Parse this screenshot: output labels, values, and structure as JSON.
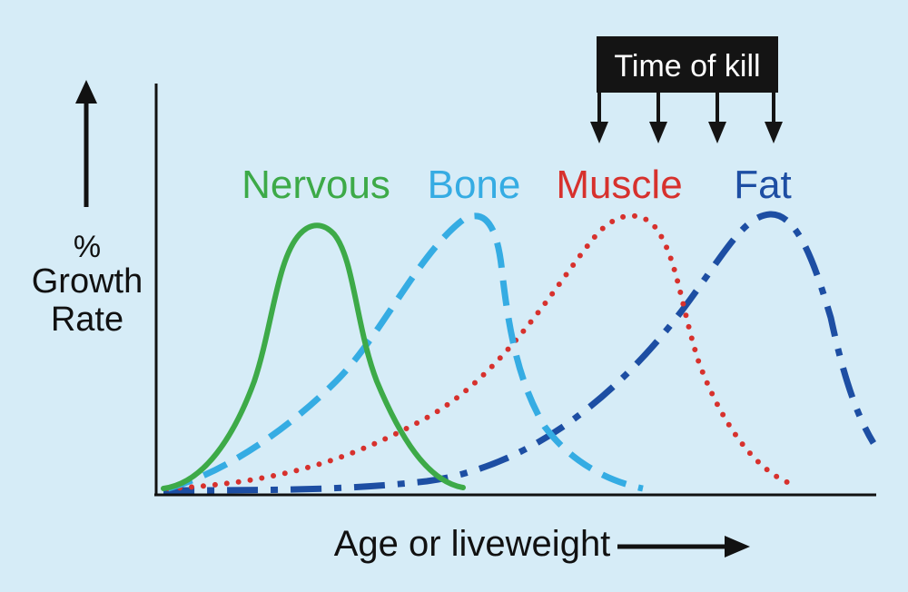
{
  "y_axis_label": [
    "%",
    "Growth",
    "Rate"
  ],
  "x_axis_label": "Age or liveweight",
  "time_of_kill_label": "Time of kill",
  "curves": [
    {
      "name": "Nervous",
      "color": "#3daa48",
      "style": "solid"
    },
    {
      "name": "Bone",
      "color": "#35ace3",
      "style": "dashed"
    },
    {
      "name": "Muscle",
      "color": "#d7312d",
      "style": "dotted"
    },
    {
      "name": "Fat",
      "color": "#1d4ea3",
      "style": "dash-dot"
    }
  ],
  "colors": {
    "background": "#d6ecf7",
    "axis": "#111111"
  }
}
